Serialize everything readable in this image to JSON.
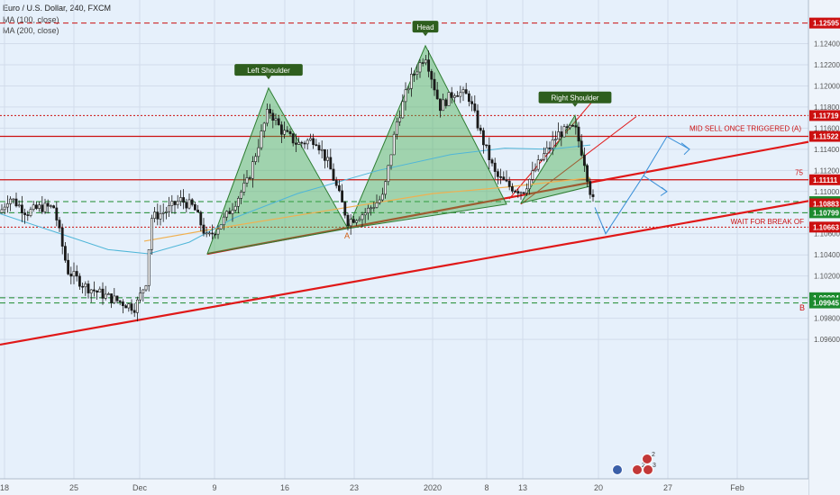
{
  "header": {
    "title": "Euro / U.S. Dollar, 240, FXCM",
    "ma1": "MA (100, close)",
    "ma2": "MA (200, close)"
  },
  "colors": {
    "background": "#e6f0fb",
    "candle": "#1a1a1a",
    "trendline": "#e01818",
    "pattern_fill": "#4caf50",
    "pattern_label_bg": "#2e5e1e",
    "ma100": "#f0b050",
    "ma200": "#4fb6d8",
    "projection": "#3a8fd8",
    "red_label": "#cc1010",
    "green_label": "#1c8a2e",
    "axis_text": "#555555"
  },
  "chart_data": {
    "type": "candlestick",
    "symbol": "Euro / U.S. Dollar",
    "timeframe": "240",
    "source": "FXCM",
    "indicators": [
      "MA (100, close)",
      "MA (200, close)"
    ],
    "ylim": [
      1.095,
      1.1275
    ],
    "y_ticks": [
      "1.12400",
      "1.12200",
      "1.12000",
      "1.11800",
      "1.11600",
      "1.11400",
      "1.11200",
      "1.11000",
      "1.10800",
      "1.10600",
      "1.10400",
      "1.10200",
      "1.10000",
      "1.09800",
      "1.09600"
    ],
    "x_ticks": [
      "18",
      "25",
      "Dec",
      "9",
      "16",
      "23",
      "2020",
      "8",
      "13",
      "20",
      "27",
      "Feb"
    ],
    "grid": true,
    "price_levels": [
      {
        "value": "1.12595",
        "color": "red",
        "style": "dashed"
      },
      {
        "value": "1.11719",
        "color": "red",
        "style": "dotted"
      },
      {
        "value": "1.11522",
        "color": "red",
        "style": "solid"
      },
      {
        "value": "1.11111",
        "color": "red",
        "style": "solid"
      },
      {
        "value": "1.10904",
        "color": "green",
        "style": "dashed"
      },
      {
        "value": "1.10883",
        "color": "red",
        "style": "label"
      },
      {
        "value": "1.10799",
        "color": "green",
        "style": "dashed"
      },
      {
        "value": "1.10663",
        "color": "red",
        "style": "dotted"
      },
      {
        "value": "1.09994",
        "color": "green",
        "style": "dashed"
      },
      {
        "value": "1.09945",
        "color": "green",
        "style": "dashed"
      }
    ],
    "annotations": [
      "Left Shoulder",
      "Head",
      "Right Shoulder",
      "MID SELL ONCE TRIGGERED (A)",
      "WAIT FOR BREAK OF",
      "75",
      "A",
      "B"
    ],
    "event_badges": [
      "2",
      "2",
      "3"
    ]
  }
}
